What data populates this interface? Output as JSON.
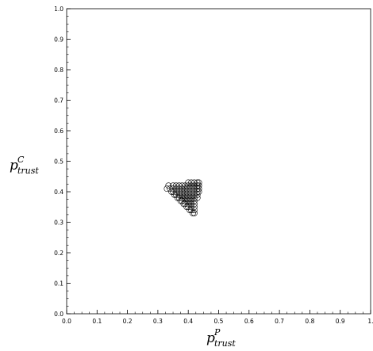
{
  "chart_data": {
    "type": "scatter",
    "title": "",
    "xlabel": {
      "base": "p",
      "superscript": "P",
      "subscript": "trust"
    },
    "ylabel": {
      "base": "p",
      "superscript": "C",
      "subscript": "trust"
    },
    "xlim": [
      0,
      1
    ],
    "ylim": [
      0,
      1
    ],
    "xticks": [
      "0.0",
      "0.1",
      "0.2",
      "0.3",
      "0.4",
      "0.5",
      "0.6",
      "0.7",
      "0.8",
      "0.9",
      "1."
    ],
    "yticks": [
      "0.0",
      "0.1",
      "0.2",
      "0.3",
      "0.4",
      "0.5",
      "0.6",
      "0.7",
      "0.8",
      "0.9",
      "1.0"
    ],
    "grid": false,
    "legend": "none",
    "marker": "circle-open",
    "marker_color": "#000000",
    "series": [
      {
        "points": [
          [
            0.33,
            0.41
          ],
          [
            0.335,
            0.42
          ],
          [
            0.34,
            0.41
          ],
          [
            0.345,
            0.4
          ],
          [
            0.35,
            0.42
          ],
          [
            0.35,
            0.41
          ],
          [
            0.35,
            0.4
          ],
          [
            0.355,
            0.39
          ],
          [
            0.36,
            0.42
          ],
          [
            0.36,
            0.41
          ],
          [
            0.36,
            0.4
          ],
          [
            0.36,
            0.39
          ],
          [
            0.365,
            0.38
          ],
          [
            0.37,
            0.42
          ],
          [
            0.37,
            0.41
          ],
          [
            0.37,
            0.4
          ],
          [
            0.37,
            0.39
          ],
          [
            0.37,
            0.38
          ],
          [
            0.375,
            0.37
          ],
          [
            0.38,
            0.42
          ],
          [
            0.38,
            0.41
          ],
          [
            0.38,
            0.4
          ],
          [
            0.38,
            0.39
          ],
          [
            0.38,
            0.38
          ],
          [
            0.38,
            0.37
          ],
          [
            0.385,
            0.36
          ],
          [
            0.39,
            0.42
          ],
          [
            0.39,
            0.41
          ],
          [
            0.39,
            0.4
          ],
          [
            0.39,
            0.39
          ],
          [
            0.39,
            0.38
          ],
          [
            0.39,
            0.37
          ],
          [
            0.39,
            0.36
          ],
          [
            0.395,
            0.35
          ],
          [
            0.4,
            0.43
          ],
          [
            0.4,
            0.42
          ],
          [
            0.4,
            0.41
          ],
          [
            0.4,
            0.4
          ],
          [
            0.4,
            0.39
          ],
          [
            0.4,
            0.38
          ],
          [
            0.4,
            0.37
          ],
          [
            0.4,
            0.36
          ],
          [
            0.4,
            0.35
          ],
          [
            0.405,
            0.34
          ],
          [
            0.41,
            0.43
          ],
          [
            0.41,
            0.42
          ],
          [
            0.41,
            0.41
          ],
          [
            0.41,
            0.4
          ],
          [
            0.41,
            0.39
          ],
          [
            0.41,
            0.38
          ],
          [
            0.41,
            0.37
          ],
          [
            0.41,
            0.36
          ],
          [
            0.41,
            0.35
          ],
          [
            0.41,
            0.34
          ],
          [
            0.415,
            0.33
          ],
          [
            0.42,
            0.43
          ],
          [
            0.42,
            0.42
          ],
          [
            0.42,
            0.41
          ],
          [
            0.42,
            0.4
          ],
          [
            0.42,
            0.39
          ],
          [
            0.42,
            0.38
          ],
          [
            0.42,
            0.37
          ],
          [
            0.42,
            0.36
          ],
          [
            0.42,
            0.35
          ],
          [
            0.42,
            0.34
          ],
          [
            0.42,
            0.33
          ],
          [
            0.43,
            0.43
          ],
          [
            0.43,
            0.42
          ],
          [
            0.43,
            0.41
          ],
          [
            0.43,
            0.4
          ],
          [
            0.43,
            0.39
          ],
          [
            0.43,
            0.38
          ],
          [
            0.435,
            0.43
          ],
          [
            0.435,
            0.42
          ],
          [
            0.435,
            0.41
          ],
          [
            0.435,
            0.4
          ]
        ]
      }
    ]
  }
}
